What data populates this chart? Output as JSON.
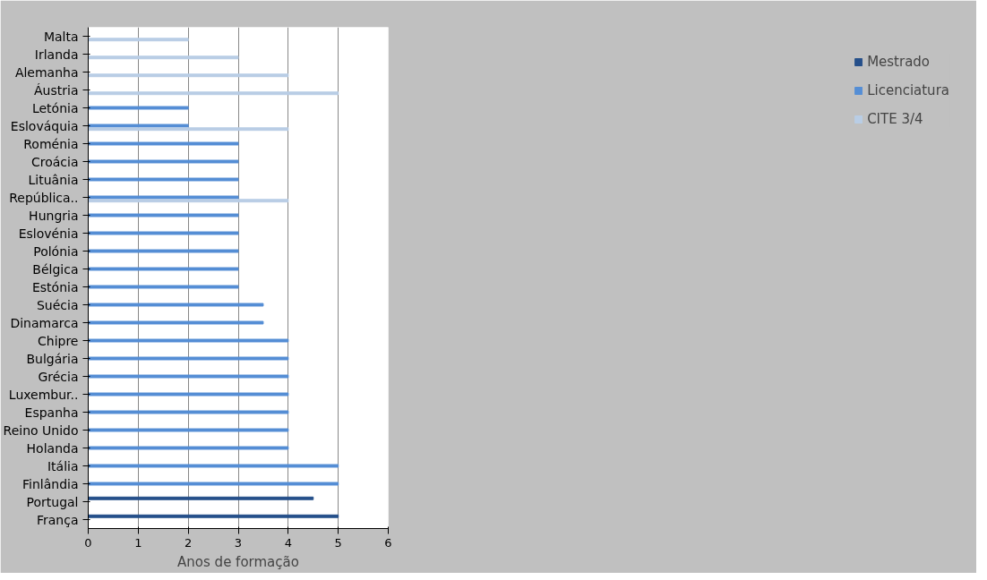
{
  "chart_data": {
    "type": "bar",
    "orientation": "horizontal",
    "xlabel": "Anos de formação",
    "categories": [
      "Malta",
      "Irlanda",
      "Alemanha",
      "Áustria",
      "Letónia",
      "Eslováquia",
      "Roménia",
      "Croácia",
      "Lituânia",
      "República..",
      "Hungria",
      "Eslovénia",
      "Polónia",
      "Bélgica",
      "Estónia",
      "Suécia",
      "Dinamarca",
      "Chipre",
      "Bulgária",
      "Grécia",
      "Luxembur..",
      "Espanha",
      "Reino Unido",
      "Holanda",
      "Itália",
      "Finlândia",
      "Portugal",
      "França"
    ],
    "series": [
      {
        "name": "Mestrado",
        "color": "#254f8a",
        "values": [
          null,
          null,
          null,
          null,
          null,
          null,
          null,
          null,
          null,
          null,
          null,
          null,
          null,
          null,
          null,
          null,
          null,
          null,
          null,
          null,
          null,
          null,
          null,
          null,
          null,
          null,
          4.5,
          5
        ]
      },
      {
        "name": "Licenciatura",
        "color": "#558ed5",
        "values": [
          null,
          null,
          null,
          null,
          2,
          2,
          3,
          3,
          3,
          3,
          3,
          3,
          3,
          3,
          3,
          3.5,
          3.5,
          4,
          4,
          4,
          4,
          4,
          4,
          4,
          5,
          5,
          null,
          null
        ]
      },
      {
        "name": "CITE 3/4",
        "color": "#b9cde5",
        "values": [
          2,
          3,
          4,
          5,
          null,
          4,
          null,
          null,
          null,
          4,
          null,
          null,
          null,
          null,
          null,
          null,
          null,
          null,
          null,
          null,
          null,
          null,
          null,
          null,
          null,
          null,
          null,
          null
        ]
      }
    ],
    "xlim": [
      0,
      6
    ],
    "xticks": [
      0,
      1,
      2,
      3,
      4,
      5,
      6
    ],
    "grid": "x",
    "legend": "right"
  }
}
